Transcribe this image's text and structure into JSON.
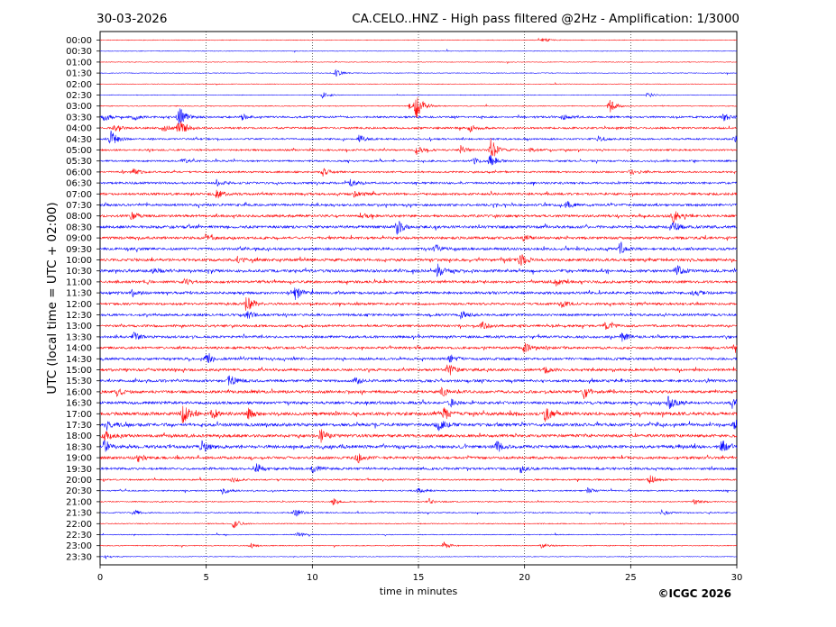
{
  "chart_data": {
    "type": "line",
    "date": "30-03-2026",
    "title": "CA.CELO..HNZ - High pass filtered @2Hz - Amplification: 1/3000",
    "xlabel": "time in minutes",
    "ylabel": "UTC (local time = UTC + 02:00)",
    "copyright": "©ICGC 2026",
    "xlim": [
      0,
      30
    ],
    "x_ticks": [
      0,
      5,
      10,
      15,
      20,
      25,
      30
    ],
    "x_grid": [
      5,
      10,
      15,
      20,
      25
    ],
    "trace_colors": [
      "#ff0000",
      "#0000ff"
    ],
    "rows": [
      {
        "label": "00:00",
        "level": 0.05,
        "bursts": [
          [
            20.9,
            0.4
          ]
        ]
      },
      {
        "label": "00:30",
        "level": 0.04,
        "bursts": []
      },
      {
        "label": "01:00",
        "level": 0.04,
        "bursts": []
      },
      {
        "label": "01:30",
        "level": 0.05,
        "bursts": [
          [
            11.1,
            0.6
          ]
        ]
      },
      {
        "label": "02:00",
        "level": 0.04,
        "bursts": []
      },
      {
        "label": "02:30",
        "level": 0.05,
        "bursts": [
          [
            10.5,
            0.5
          ],
          [
            25.8,
            0.4
          ]
        ]
      },
      {
        "label": "03:00",
        "level": 0.1,
        "bursts": [
          [
            14.9,
            2.2
          ],
          [
            24.0,
            1.2
          ],
          [
            14.6,
            0.5
          ]
        ]
      },
      {
        "label": "03:30",
        "level": 0.35,
        "bursts": [
          [
            0.2,
            0.6
          ],
          [
            1.6,
            0.5
          ],
          [
            3.7,
            1.8
          ],
          [
            6.7,
            0.5
          ],
          [
            21.8,
            0.5
          ],
          [
            29.4,
            0.6
          ]
        ]
      },
      {
        "label": "04:00",
        "level": 0.35,
        "bursts": [
          [
            0.7,
            0.6
          ],
          [
            3.0,
            0.6
          ],
          [
            3.7,
            1.6
          ],
          [
            17.4,
            0.7
          ]
        ]
      },
      {
        "label": "04:30",
        "level": 0.3,
        "bursts": [
          [
            0.5,
            1.4
          ],
          [
            12.2,
            0.6
          ],
          [
            23.5,
            0.5
          ],
          [
            29.9,
            0.6
          ]
        ]
      },
      {
        "label": "05:00",
        "level": 0.3,
        "bursts": [
          [
            14.9,
            0.8
          ],
          [
            17.0,
            0.7
          ],
          [
            18.4,
            2.0
          ],
          [
            20.3,
            0.4
          ]
        ]
      },
      {
        "label": "05:30",
        "level": 0.3,
        "bursts": [
          [
            18.4,
            1.2
          ],
          [
            17.6,
            0.5
          ],
          [
            3.9,
            0.4
          ]
        ]
      },
      {
        "label": "06:00",
        "level": 0.3,
        "bursts": [
          [
            1.6,
            0.5
          ],
          [
            10.5,
            0.6
          ],
          [
            25.0,
            0.5
          ]
        ]
      },
      {
        "label": "06:30",
        "level": 0.4,
        "bursts": [
          [
            5.5,
            0.5
          ],
          [
            11.8,
            0.5
          ]
        ]
      },
      {
        "label": "07:00",
        "level": 0.45,
        "bursts": [
          [
            5.5,
            0.7
          ],
          [
            12.0,
            0.6
          ]
        ]
      },
      {
        "label": "07:30",
        "level": 0.45,
        "bursts": [
          [
            22.0,
            0.6
          ]
        ]
      },
      {
        "label": "08:00",
        "level": 0.5,
        "bursts": [
          [
            1.5,
            0.6
          ],
          [
            27.0,
            1.0
          ],
          [
            12.3,
            0.5
          ]
        ]
      },
      {
        "label": "08:30",
        "level": 0.55,
        "bursts": [
          [
            14.0,
            1.3
          ],
          [
            27.0,
            0.9
          ]
        ]
      },
      {
        "label": "09:00",
        "level": 0.5,
        "bursts": [
          [
            5.0,
            0.5
          ],
          [
            20.0,
            0.5
          ]
        ]
      },
      {
        "label": "09:30",
        "level": 0.5,
        "bursts": [
          [
            15.8,
            0.7
          ],
          [
            24.5,
            0.8
          ]
        ]
      },
      {
        "label": "10:00",
        "level": 0.55,
        "bursts": [
          [
            19.8,
            1.0
          ],
          [
            6.5,
            0.5
          ]
        ]
      },
      {
        "label": "10:30",
        "level": 0.55,
        "bursts": [
          [
            15.9,
            1.1
          ],
          [
            27.2,
            0.8
          ],
          [
            2.5,
            0.5
          ]
        ]
      },
      {
        "label": "11:00",
        "level": 0.5,
        "bursts": [
          [
            21.5,
            0.6
          ],
          [
            4.0,
            0.5
          ]
        ]
      },
      {
        "label": "11:30",
        "level": 0.5,
        "bursts": [
          [
            9.2,
            1.1
          ],
          [
            1.5,
            0.6
          ],
          [
            28.0,
            0.6
          ]
        ]
      },
      {
        "label": "12:00",
        "level": 0.45,
        "bursts": [
          [
            6.9,
            1.4
          ],
          [
            21.7,
            0.6
          ]
        ]
      },
      {
        "label": "12:30",
        "level": 0.45,
        "bursts": [
          [
            6.9,
            0.8
          ],
          [
            17.0,
            0.6
          ]
        ]
      },
      {
        "label": "13:00",
        "level": 0.45,
        "bursts": [
          [
            18.0,
            0.6
          ],
          [
            23.8,
            0.7
          ]
        ]
      },
      {
        "label": "13:30",
        "level": 0.45,
        "bursts": [
          [
            1.6,
            0.6
          ],
          [
            24.6,
            0.7
          ]
        ]
      },
      {
        "label": "14:00",
        "level": 0.45,
        "bursts": [
          [
            20.0,
            0.7
          ],
          [
            29.9,
            0.8
          ]
        ]
      },
      {
        "label": "14:30",
        "level": 0.45,
        "bursts": [
          [
            5.0,
            0.7
          ],
          [
            16.5,
            0.7
          ]
        ]
      },
      {
        "label": "15:00",
        "level": 0.5,
        "bursts": [
          [
            16.4,
            1.0
          ],
          [
            21.0,
            0.6
          ]
        ]
      },
      {
        "label": "15:30",
        "level": 0.5,
        "bursts": [
          [
            6.1,
            1.0
          ],
          [
            12.0,
            0.6
          ]
        ]
      },
      {
        "label": "16:00",
        "level": 0.55,
        "bursts": [
          [
            0.8,
            0.6
          ],
          [
            22.8,
            1.0
          ],
          [
            16.1,
            0.7
          ]
        ]
      },
      {
        "label": "16:30",
        "level": 0.55,
        "bursts": [
          [
            26.8,
            1.2
          ],
          [
            29.8,
            0.8
          ],
          [
            16.5,
            0.6
          ]
        ]
      },
      {
        "label": "17:00",
        "level": 0.65,
        "bursts": [
          [
            3.9,
            1.8
          ],
          [
            5.3,
            0.9
          ],
          [
            7.0,
            0.8
          ],
          [
            16.2,
            1.0
          ],
          [
            21.0,
            1.2
          ]
        ]
      },
      {
        "label": "17:30",
        "level": 0.65,
        "bursts": [
          [
            0.3,
            0.9
          ],
          [
            15.9,
            1.2
          ],
          [
            29.9,
            0.8
          ]
        ]
      },
      {
        "label": "18:00",
        "level": 0.6,
        "bursts": [
          [
            10.4,
            1.0
          ],
          [
            0.2,
            0.8
          ]
        ]
      },
      {
        "label": "18:30",
        "level": 0.65,
        "bursts": [
          [
            4.8,
            1.2
          ],
          [
            18.7,
            0.9
          ],
          [
            29.3,
            1.0
          ],
          [
            0.2,
            0.9
          ]
        ]
      },
      {
        "label": "19:00",
        "level": 0.5,
        "bursts": [
          [
            12.1,
            1.1
          ],
          [
            1.8,
            0.6
          ]
        ]
      },
      {
        "label": "19:30",
        "level": 0.45,
        "bursts": [
          [
            7.4,
            0.8
          ],
          [
            10.0,
            0.7
          ],
          [
            19.8,
            0.6
          ]
        ]
      },
      {
        "label": "20:00",
        "level": 0.25,
        "bursts": [
          [
            25.9,
            0.9
          ],
          [
            6.3,
            0.4
          ]
        ]
      },
      {
        "label": "20:30",
        "level": 0.2,
        "bursts": [
          [
            5.8,
            0.6
          ],
          [
            15.0,
            0.5
          ],
          [
            23.0,
            0.5
          ]
        ]
      },
      {
        "label": "21:00",
        "level": 0.15,
        "bursts": [
          [
            11.0,
            0.5
          ],
          [
            15.5,
            0.5
          ],
          [
            28.0,
            0.5
          ]
        ]
      },
      {
        "label": "21:30",
        "level": 0.15,
        "bursts": [
          [
            9.2,
            0.7
          ],
          [
            1.6,
            0.5
          ],
          [
            26.5,
            0.5
          ]
        ]
      },
      {
        "label": "22:00",
        "level": 0.12,
        "bursts": [
          [
            6.3,
            0.8
          ]
        ]
      },
      {
        "label": "22:30",
        "level": 0.1,
        "bursts": [
          [
            9.3,
            0.4
          ]
        ]
      },
      {
        "label": "23:00",
        "level": 0.1,
        "bursts": [
          [
            16.2,
            0.6
          ],
          [
            7.1,
            0.4
          ],
          [
            20.8,
            0.4
          ]
        ]
      },
      {
        "label": "23:30",
        "level": 0.05,
        "bursts": [
          [
            0.3,
            0.3
          ]
        ]
      }
    ]
  }
}
